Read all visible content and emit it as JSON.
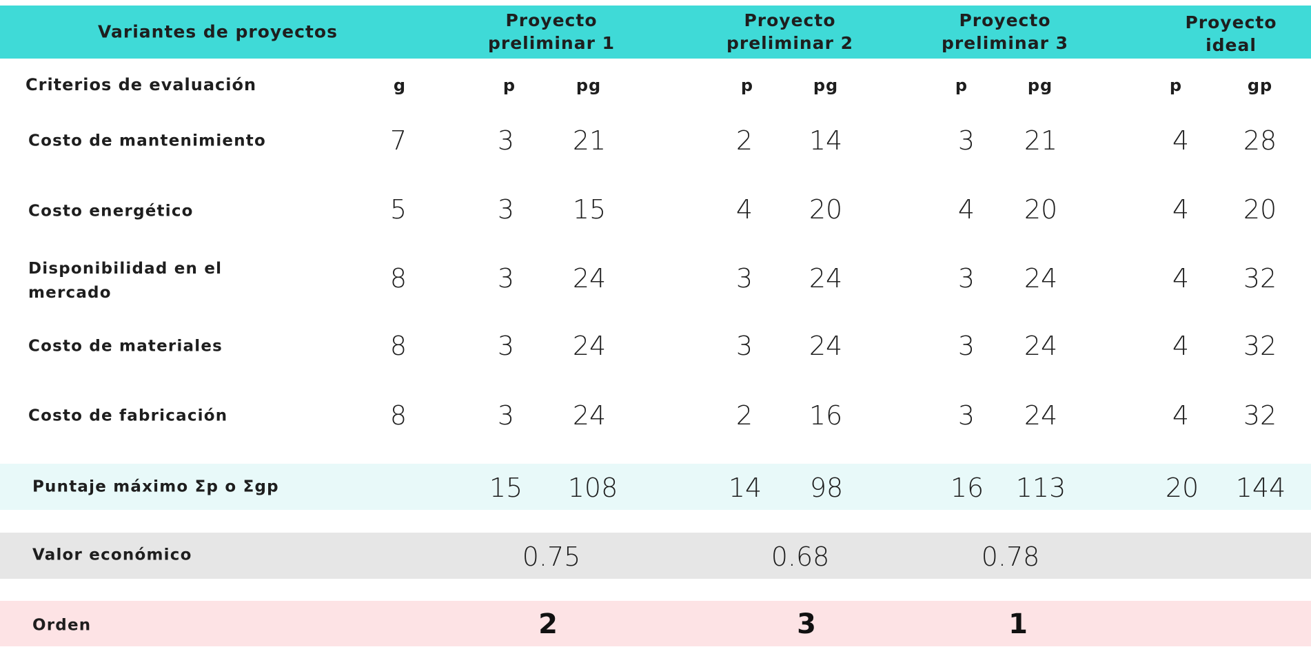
{
  "header": {
    "variants_label": "Variantes de proyectos",
    "project_1": "Proyecto\npreliminar 1",
    "project_2": "Proyecto\npreliminar 2",
    "project_3": "Proyecto\npreliminar 3",
    "ideal": "Proyecto\nideal"
  },
  "subheader": {
    "criteria_label": "Criterios de evaluación",
    "g": "g",
    "p1": "p",
    "pg1": "pg",
    "p2": "p",
    "pg2": "pg",
    "p3": "p",
    "pg3": "pg",
    "p_ideal": "p",
    "gp_ideal": "gp"
  },
  "rows": [
    {
      "label": "Costo de mantenimiento",
      "g": "7",
      "p1": "3",
      "pg1": "21",
      "p2": "2",
      "pg2": "14",
      "p3": "3",
      "pg3": "21",
      "pi": "4",
      "gpi": "28"
    },
    {
      "label": "Costo energético",
      "g": "5",
      "p1": "3",
      "pg1": "15",
      "p2": "4",
      "pg2": "20",
      "p3": "4",
      "pg3": "20",
      "pi": "4",
      "gpi": "20"
    },
    {
      "label": "Disponibilidad en el\nmercado",
      "g": "8",
      "p1": "3",
      "pg1": "24",
      "p2": "3",
      "pg2": "24",
      "p3": "3",
      "pg3": "24",
      "pi": "4",
      "gpi": "32"
    },
    {
      "label": "Costo de materiales",
      "g": "8",
      "p1": "3",
      "pg1": "24",
      "p2": "3",
      "pg2": "24",
      "p3": "3",
      "pg3": "24",
      "pi": "4",
      "gpi": "32"
    },
    {
      "label": "Costo de fabricación",
      "g": "8",
      "p1": "3",
      "pg1": "24",
      "p2": "2",
      "pg2": "16",
      "p3": "3",
      "pg3": "24",
      "pi": "4",
      "gpi": "32"
    }
  ],
  "totals": {
    "label": "Puntaje máximo  Σp o  Σgp",
    "p1": "15",
    "pg1": "108",
    "p2": "14",
    "pg2": "98",
    "p3": "16",
    "pg3": "113",
    "pi": "20",
    "gpi": "144"
  },
  "economic": {
    "label": "Valor económico",
    "v1": "0.75",
    "v2": "0.68",
    "v3": "0.78"
  },
  "order": {
    "label": "Orden",
    "o1": "2",
    "o2": "3",
    "o3": "1"
  },
  "colors": {
    "header_bg": "#3fdad7",
    "totals_bg": "#e8f9f9",
    "economic_bg": "#e6e6e6",
    "order_bg": "#fde3e5"
  }
}
